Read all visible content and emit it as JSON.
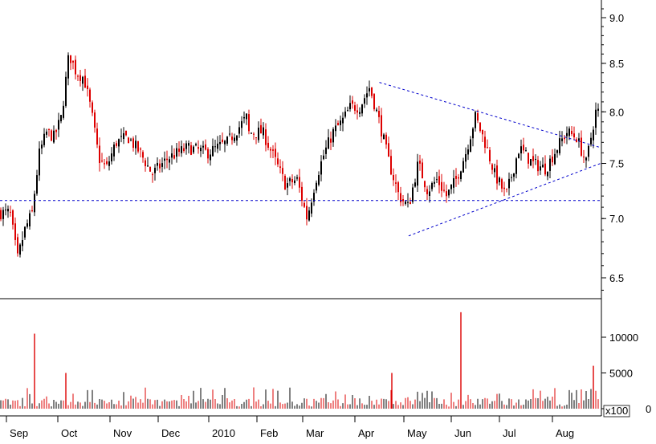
{
  "chart_data": [
    {
      "type": "candlestick",
      "panel": "price",
      "y_axis_side": "right",
      "y_axis_scale": "log",
      "ylim": [
        6.3,
        9.3
      ],
      "yticks": [
        6.5,
        7.0,
        7.5,
        8.0,
        8.5,
        9.0
      ],
      "ytick_labels": [
        "6.5",
        "7.0",
        "7.5",
        "8.0",
        "8.5",
        "9.0"
      ],
      "x_labels": [
        "Sep",
        "Oct",
        "Nov",
        "Dec",
        "2010",
        "Feb",
        "Mar",
        "Apr",
        "May",
        "Jun",
        "Jul",
        "Aug"
      ],
      "grid": false,
      "colors": {
        "up": "#000000",
        "down": "#dd0000",
        "trendline": "#0000cc",
        "reference": "#0000cc"
      },
      "price_path": [
        [
          "Sep",
          7.05
        ],
        [
          "Sep",
          6.65
        ],
        [
          "Sep",
          6.9
        ],
        [
          "Sep",
          7.05
        ],
        [
          "Sep",
          7.6
        ],
        [
          "Sep",
          7.8
        ],
        [
          "Sep",
          7.75
        ],
        [
          "Oct",
          7.95
        ],
        [
          "Oct",
          8.6
        ],
        [
          "Oct",
          8.4
        ],
        [
          "Oct",
          8.35
        ],
        [
          "Oct",
          8.0
        ],
        [
          "Oct",
          7.55
        ],
        [
          "Oct",
          7.45
        ],
        [
          "Nov",
          7.7
        ],
        [
          "Nov",
          7.75
        ],
        [
          "Nov",
          7.6
        ],
        [
          "Nov",
          7.4
        ],
        [
          "Dec",
          7.55
        ],
        [
          "Dec",
          7.65
        ],
        [
          "Dec",
          7.6
        ],
        [
          "Dec",
          7.7
        ],
        [
          "Dec",
          7.95
        ],
        [
          "2010",
          8.1
        ],
        [
          "2010",
          8.05
        ],
        [
          "2010",
          7.9
        ],
        [
          "2010",
          7.65
        ],
        [
          "Feb",
          7.8
        ],
        [
          "Feb",
          7.55
        ],
        [
          "Feb",
          7.3
        ],
        [
          "Feb",
          7.35
        ],
        [
          "Mar",
          7.0
        ],
        [
          "Mar",
          7.35
        ],
        [
          "Mar",
          7.6
        ],
        [
          "Mar",
          7.8
        ],
        [
          "Mar",
          7.9
        ],
        [
          "Mar",
          8.05
        ],
        [
          "Apr",
          8.05
        ],
        [
          "Apr",
          8.25
        ],
        [
          "Apr",
          7.9
        ],
        [
          "Apr",
          7.5
        ],
        [
          "Apr",
          7.2
        ],
        [
          "May",
          7.1
        ],
        [
          "May",
          7.5
        ],
        [
          "May",
          7.25
        ],
        [
          "May",
          7.35
        ],
        [
          "May",
          7.2
        ],
        [
          "Jun",
          7.35
        ],
        [
          "Jun",
          7.6
        ],
        [
          "Jun",
          7.95
        ],
        [
          "Jun",
          7.7
        ],
        [
          "Jun",
          7.4
        ],
        [
          "Jul",
          7.2
        ],
        [
          "Jul",
          7.65
        ],
        [
          "Jul",
          7.5
        ],
        [
          "Jul",
          7.45
        ],
        [
          "Aug",
          7.65
        ],
        [
          "Aug",
          7.8
        ],
        [
          "Aug",
          7.75
        ],
        [
          "Aug",
          7.5
        ],
        [
          "Aug",
          8.0
        ]
      ],
      "annotations": [
        {
          "type": "trendline",
          "style": "dashed",
          "from": [
            "Apr",
            8.3
          ],
          "to": [
            "Aug",
            7.65
          ]
        },
        {
          "type": "trendline",
          "style": "dashed",
          "from": [
            "May",
            6.85
          ],
          "to": [
            "Aug",
            7.5
          ]
        },
        {
          "type": "horizontal_line",
          "style": "dashed",
          "y": 7.16
        }
      ]
    },
    {
      "type": "bar",
      "panel": "volume",
      "y_axis_side": "right",
      "ylim": [
        0,
        13000
      ],
      "yticks": [
        0,
        5000,
        10000
      ],
      "ytick_labels": [
        "0",
        "5000",
        "10000"
      ],
      "unit_label": "x100",
      "spikes": [
        {
          "x": "Sep",
          "value": 10500
        },
        {
          "x": "Oct",
          "value": 5000
        },
        {
          "x": "Apr",
          "value": 5000
        },
        {
          "x": "Jun",
          "value": 13500
        },
        {
          "x": "Aug",
          "value": 6000
        }
      ],
      "baseline_volume": [
        300,
        3000
      ]
    }
  ]
}
